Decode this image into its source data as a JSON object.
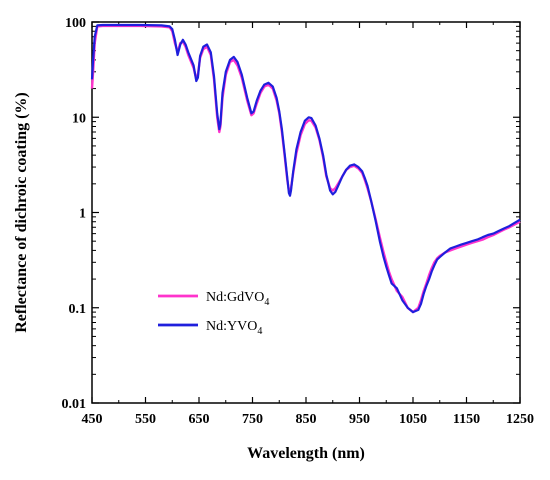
{
  "chart_data": {
    "type": "line",
    "title": "",
    "xlabel": "Wavelength (nm)",
    "ylabel": "Reflectance of dichroic coating (%)",
    "xlim": [
      450,
      1250
    ],
    "ylim": [
      0.01,
      100
    ],
    "yscale": "log",
    "grid": false,
    "legend_position": "lower-left",
    "xticks": [
      "450",
      "550",
      "650",
      "750",
      "850",
      "950",
      "1050",
      "1150",
      "1250"
    ],
    "yticks": [
      "0.01",
      "0.1",
      "1",
      "10",
      "100"
    ],
    "series": [
      {
        "name_main": "Nd:GdVO",
        "name_sub": "4",
        "color": "#ff33cc",
        "x": [
          450,
          452,
          455,
          460,
          470,
          500,
          540,
          580,
          595,
          600,
          605,
          610,
          615,
          620,
          625,
          630,
          640,
          645,
          648,
          652,
          658,
          665,
          672,
          678,
          684,
          688,
          690,
          694,
          700,
          708,
          715,
          722,
          730,
          740,
          748,
          752,
          758,
          765,
          772,
          780,
          788,
          795,
          800,
          805,
          810,
          815,
          818,
          820,
          822,
          826,
          832,
          840,
          848,
          855,
          860,
          868,
          875,
          882,
          888,
          895,
          900,
          905,
          910,
          918,
          925,
          932,
          940,
          948,
          955,
          960,
          965,
          972,
          980,
          988,
          995,
          1000,
          1005,
          1010,
          1020,
          1030,
          1040,
          1050,
          1060,
          1065,
          1070,
          1075,
          1080,
          1085,
          1090,
          1095,
          1100,
          1110,
          1120,
          1130,
          1140,
          1150,
          1160,
          1170,
          1180,
          1190,
          1200,
          1210,
          1220,
          1230,
          1240,
          1250
        ],
        "y": [
          20,
          30,
          60,
          90,
          91,
          91,
          91,
          90,
          88,
          80,
          60,
          48,
          60,
          62,
          55,
          45,
          33,
          25,
          28,
          42,
          52,
          55,
          45,
          25,
          10,
          7,
          8,
          16,
          28,
          38,
          40,
          35,
          26,
          15,
          10.5,
          11,
          14,
          18,
          21,
          22,
          20,
          15,
          11,
          7,
          4,
          2.2,
          1.7,
          1.6,
          1.8,
          2.6,
          4.2,
          6.5,
          8.5,
          9.3,
          9.2,
          7.8,
          5.8,
          3.8,
          2.4,
          1.8,
          1.7,
          1.8,
          2.0,
          2.4,
          2.8,
          3.0,
          3.1,
          2.9,
          2.6,
          2.2,
          1.8,
          1.3,
          0.85,
          0.55,
          0.38,
          0.3,
          0.24,
          0.2,
          0.15,
          0.13,
          0.1,
          0.09,
          0.1,
          0.12,
          0.15,
          0.18,
          0.22,
          0.26,
          0.3,
          0.33,
          0.35,
          0.38,
          0.4,
          0.42,
          0.44,
          0.46,
          0.48,
          0.5,
          0.52,
          0.55,
          0.58,
          0.62,
          0.66,
          0.7,
          0.75,
          0.8
        ]
      },
      {
        "name_main": "Nd:YVO",
        "name_sub": "4",
        "color": "#1f1fdd",
        "x": [
          450,
          452,
          455,
          460,
          470,
          500,
          540,
          580,
          595,
          600,
          605,
          610,
          615,
          620,
          625,
          630,
          640,
          645,
          648,
          652,
          658,
          665,
          672,
          678,
          684,
          688,
          690,
          694,
          700,
          708,
          715,
          722,
          730,
          740,
          748,
          752,
          758,
          765,
          772,
          780,
          788,
          795,
          800,
          805,
          810,
          815,
          818,
          820,
          822,
          826,
          832,
          840,
          848,
          855,
          860,
          868,
          875,
          882,
          888,
          895,
          900,
          905,
          910,
          918,
          925,
          932,
          940,
          948,
          955,
          960,
          965,
          972,
          980,
          988,
          995,
          1000,
          1005,
          1010,
          1020,
          1030,
          1040,
          1050,
          1060,
          1065,
          1070,
          1075,
          1080,
          1085,
          1090,
          1095,
          1100,
          1110,
          1120,
          1130,
          1140,
          1150,
          1160,
          1170,
          1180,
          1190,
          1200,
          1210,
          1220,
          1230,
          1240,
          1250
        ],
        "y": [
          25,
          40,
          70,
          92,
          93,
          93,
          93,
          92,
          90,
          84,
          65,
          45,
          58,
          65,
          58,
          48,
          35,
          24,
          26,
          44,
          55,
          58,
          48,
          27,
          11,
          7.5,
          8.5,
          18,
          30,
          40,
          43,
          38,
          28,
          16,
          11,
          11.5,
          15,
          19,
          22,
          23,
          21,
          16,
          11.5,
          7.5,
          4.2,
          2.3,
          1.6,
          1.5,
          1.7,
          2.7,
          4.6,
          7.0,
          9.2,
          10,
          9.8,
          8.2,
          6.0,
          4.0,
          2.5,
          1.7,
          1.55,
          1.65,
          1.9,
          2.4,
          2.8,
          3.1,
          3.2,
          3.0,
          2.7,
          2.3,
          1.9,
          1.3,
          0.82,
          0.5,
          0.34,
          0.27,
          0.22,
          0.18,
          0.16,
          0.12,
          0.1,
          0.09,
          0.095,
          0.11,
          0.14,
          0.17,
          0.2,
          0.24,
          0.28,
          0.32,
          0.34,
          0.38,
          0.42,
          0.44,
          0.46,
          0.48,
          0.5,
          0.52,
          0.55,
          0.58,
          0.6,
          0.64,
          0.68,
          0.72,
          0.78,
          0.84
        ]
      }
    ]
  }
}
